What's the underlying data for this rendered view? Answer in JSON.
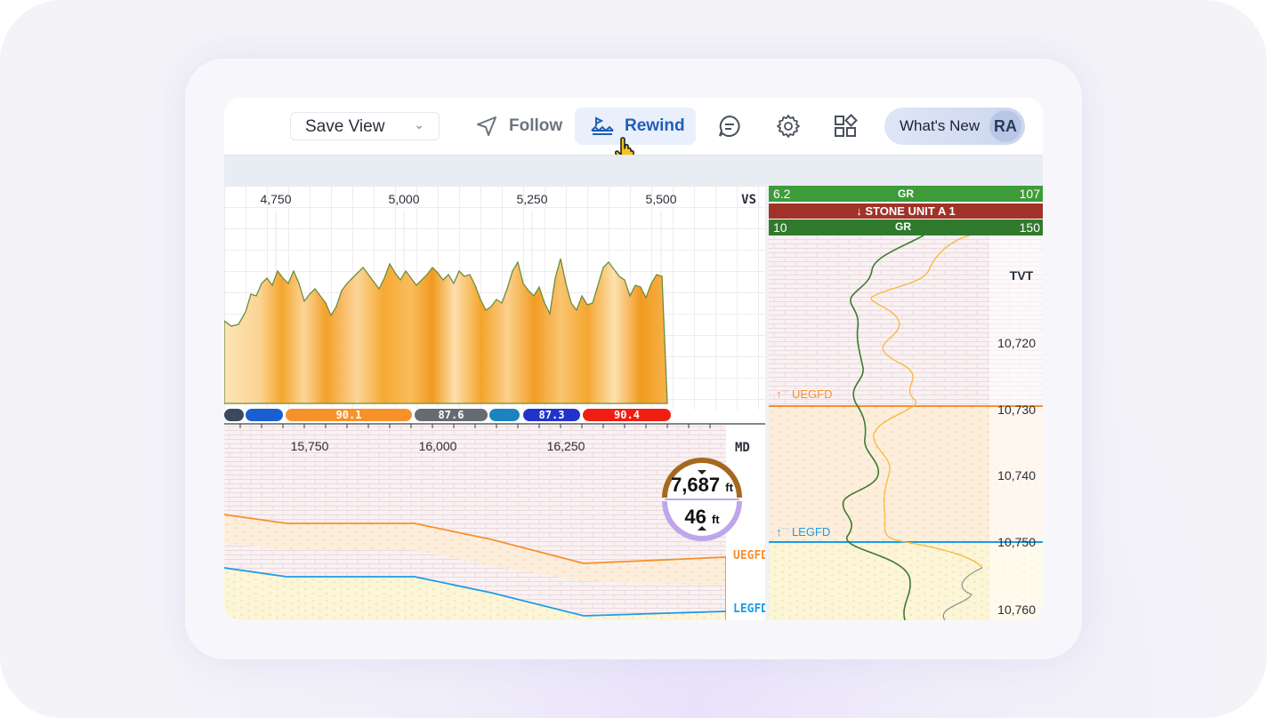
{
  "toolbar": {
    "save_view_label": "Save View",
    "follow_label": "Follow",
    "rewind_label": "Rewind",
    "whats_new_label": "What's New",
    "avatar_initials": "RA",
    "icons": [
      "send-icon",
      "rewind-icon",
      "chat-icon",
      "gear-icon",
      "widgets-icon",
      "pointer-hand-icon"
    ],
    "accent_color": "#1f5fb8"
  },
  "vs_chart": {
    "axis_label": "VS",
    "x_ticks": [
      "4,750",
      "5,000",
      "5,250",
      "5,500"
    ],
    "fill_colors": [
      "#f4a21c",
      "#fde3b6"
    ],
    "line_color": "#6b8e3a"
  },
  "badges": [
    {
      "label": "",
      "color": "#3a4a5c"
    },
    {
      "label": "",
      "color": "#1a5fd0"
    },
    {
      "label": "90.1",
      "color": "#f7922a"
    },
    {
      "label": "87.6",
      "color": "#666b73"
    },
    {
      "label": "",
      "color": "#1b84c0"
    },
    {
      "label": "87.3",
      "color": "#2233cc"
    },
    {
      "label": "90.4",
      "color": "#f01e12"
    }
  ],
  "md_section": {
    "axis_label": "MD",
    "x_ticks": [
      "15,750",
      "16,000",
      "16,250"
    ],
    "formation_labels": {
      "upper": "UEGFD",
      "lower": "LEGFD"
    },
    "upper_color": "#f7902e",
    "lower_color": "#1e9be6"
  },
  "readout": {
    "top_value": "7,687",
    "top_unit": "ft",
    "bottom_value": "46",
    "bottom_unit": "ft"
  },
  "tvt_panel": {
    "gr_top": {
      "left": "6.2",
      "center": "GR",
      "right": "107"
    },
    "stone_unit": {
      "label": "↓ STONE UNIT A 1"
    },
    "gr_bottom": {
      "left": "10",
      "center": "GR",
      "right": "150"
    },
    "axis_label": "TVT",
    "y_ticks": [
      "10,720",
      "10,730",
      "10,740",
      "10,750",
      "10,760"
    ],
    "markers": [
      {
        "label": "UEGFD",
        "color": "#f7902e"
      },
      {
        "label": "LEGFD",
        "color": "#1e9be6"
      }
    ],
    "gr_header_color": "#3e9b3a",
    "stone_color": "#a03227"
  }
}
